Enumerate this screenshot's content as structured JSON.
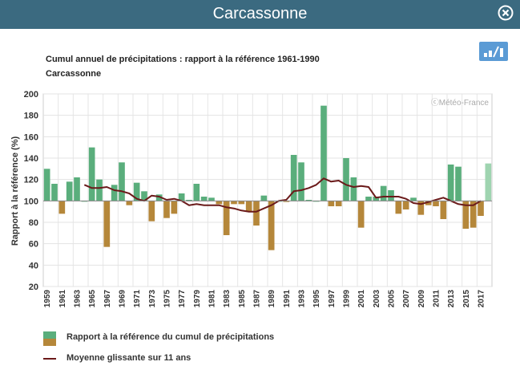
{
  "window": {
    "title": "Carcassonne",
    "close_icon": "close-circle-icon"
  },
  "export": {
    "icon": "bar-chart-icon"
  },
  "chart_data": {
    "type": "bar",
    "title": "Cumul annuel de précipitations : rapport à la référence 1961-1990",
    "subtitle": "Carcassonne",
    "ylabel": "Rapport à la référence (%)",
    "credit": "ⓒMétéo-France",
    "ylim": [
      20,
      200
    ],
    "yticks": [
      20,
      40,
      60,
      80,
      100,
      120,
      140,
      160,
      180,
      200
    ],
    "baseline": 100,
    "grid": true,
    "colors": {
      "above": "#5aae7c",
      "below": "#b5873a",
      "last": "#9fd4b0",
      "average": "#6b1a1a"
    },
    "years": [
      1959,
      1960,
      1961,
      1962,
      1963,
      1964,
      1965,
      1966,
      1967,
      1968,
      1969,
      1970,
      1971,
      1972,
      1973,
      1974,
      1975,
      1976,
      1977,
      1978,
      1979,
      1980,
      1981,
      1982,
      1983,
      1984,
      1985,
      1986,
      1987,
      1988,
      1989,
      1990,
      1991,
      1992,
      1993,
      1994,
      1995,
      1996,
      1997,
      1998,
      1999,
      2000,
      2001,
      2002,
      2003,
      2004,
      2005,
      2006,
      2007,
      2008,
      2009,
      2010,
      2011,
      2012,
      2013,
      2014,
      2015,
      2016,
      2017,
      2018
    ],
    "tick_years": [
      1959,
      1961,
      1963,
      1965,
      1967,
      1969,
      1971,
      1973,
      1975,
      1977,
      1979,
      1981,
      1983,
      1985,
      1987,
      1989,
      1991,
      1993,
      1995,
      1997,
      1999,
      2001,
      2003,
      2005,
      2007,
      2009,
      2011,
      2013,
      2015,
      2017
    ],
    "values": [
      130,
      116,
      88,
      118,
      122,
      100,
      150,
      120,
      57,
      115,
      136,
      96,
      117,
      109,
      81,
      106,
      84,
      88,
      107,
      101,
      116,
      104,
      103,
      97,
      68,
      97,
      97,
      90,
      77,
      105,
      54,
      100,
      99,
      143,
      136,
      101,
      100,
      189,
      95,
      95,
      140,
      122,
      75,
      104,
      104,
      114,
      110,
      88,
      92,
      103,
      87,
      96,
      95,
      83,
      134,
      132,
      74,
      75,
      86,
      135
    ],
    "average_series": {
      "name": "Moyenne glissante sur 11 ans",
      "start_year": 1964,
      "values": [
        115,
        112,
        112,
        113,
        110,
        109,
        107,
        102,
        100,
        105,
        104,
        101,
        102,
        100,
        96,
        97,
        96,
        96,
        96,
        94,
        93,
        91,
        90,
        90,
        93,
        96,
        100,
        101,
        109,
        110,
        112,
        115,
        121,
        118,
        119,
        115,
        113,
        114,
        113,
        103,
        104,
        104,
        104,
        102,
        98,
        97,
        99,
        101,
        103,
        100,
        97,
        96,
        96,
        100
      ]
    },
    "legend": {
      "position": "bottom-left",
      "items": [
        {
          "label": "Rapport à la référence du cumul de précipitations",
          "kind": "bars"
        },
        {
          "label": "Moyenne glissante sur 11 ans",
          "kind": "line"
        }
      ]
    }
  }
}
